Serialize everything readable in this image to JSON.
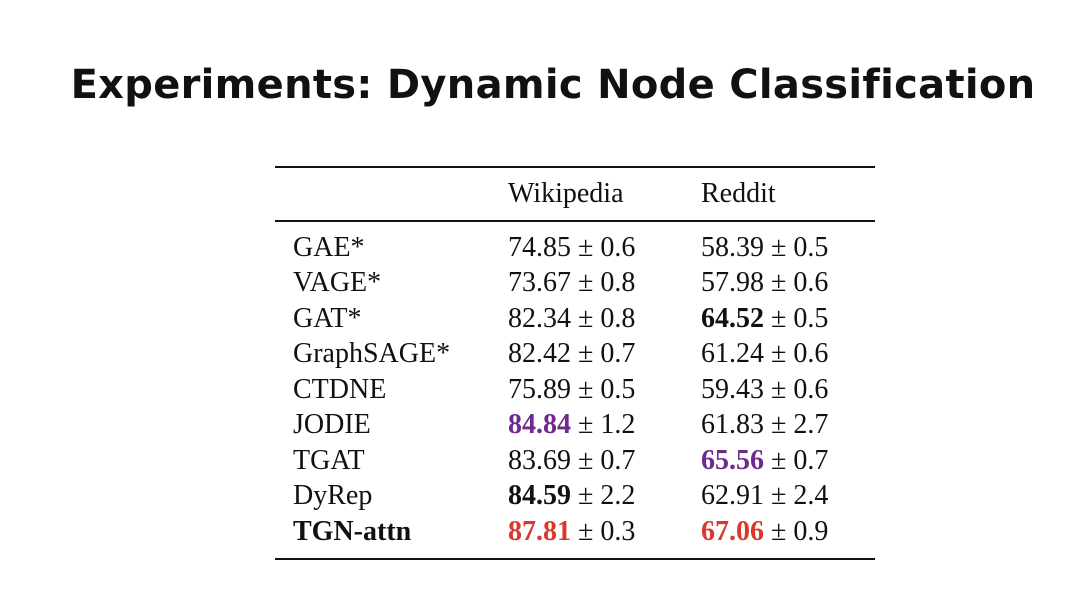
{
  "title": "Experiments: Dynamic Node Classification",
  "colors": {
    "purple": "#6e2a8c",
    "red": "#d8392b"
  },
  "table": {
    "headers": [
      "",
      "Wikipedia",
      "Reddit"
    ],
    "rows": [
      {
        "name": "GAE*",
        "wiki": {
          "v": "74.85",
          "pm": "± 0.6",
          "style": ""
        },
        "reddit": {
          "v": "58.39",
          "pm": "± 0.5",
          "style": ""
        }
      },
      {
        "name": "VAGE*",
        "wiki": {
          "v": "73.67",
          "pm": "± 0.8",
          "style": ""
        },
        "reddit": {
          "v": "57.98",
          "pm": "± 0.6",
          "style": ""
        }
      },
      {
        "name": "GAT*",
        "wiki": {
          "v": "82.34",
          "pm": "± 0.8",
          "style": ""
        },
        "reddit": {
          "v": "64.52",
          "pm": "± 0.5",
          "style": "bold"
        }
      },
      {
        "name": "GraphSAGE*",
        "wiki": {
          "v": "82.42",
          "pm": "± 0.7",
          "style": ""
        },
        "reddit": {
          "v": "61.24",
          "pm": "± 0.6",
          "style": ""
        }
      },
      {
        "name": "CTDNE",
        "wiki": {
          "v": "75.89",
          "pm": "± 0.5",
          "style": ""
        },
        "reddit": {
          "v": "59.43",
          "pm": "± 0.6",
          "style": ""
        }
      },
      {
        "name": "JODIE",
        "wiki": {
          "v": "84.84",
          "pm": "± 1.2",
          "style": "purple"
        },
        "reddit": {
          "v": "61.83",
          "pm": "± 2.7",
          "style": ""
        }
      },
      {
        "name": "TGAT",
        "wiki": {
          "v": "83.69",
          "pm": "± 0.7",
          "style": ""
        },
        "reddit": {
          "v": "65.56",
          "pm": "± 0.7",
          "style": "purple"
        }
      },
      {
        "name": "DyRep",
        "wiki": {
          "v": "84.59",
          "pm": "± 2.2",
          "style": "bold"
        },
        "reddit": {
          "v": "62.91",
          "pm": "± 2.4",
          "style": ""
        }
      },
      {
        "name": "TGN-attn",
        "name_bold": true,
        "wiki": {
          "v": "87.81",
          "pm": "± 0.3",
          "style": "red"
        },
        "reddit": {
          "v": "67.06",
          "pm": "± 0.9",
          "style": "red"
        }
      }
    ]
  }
}
